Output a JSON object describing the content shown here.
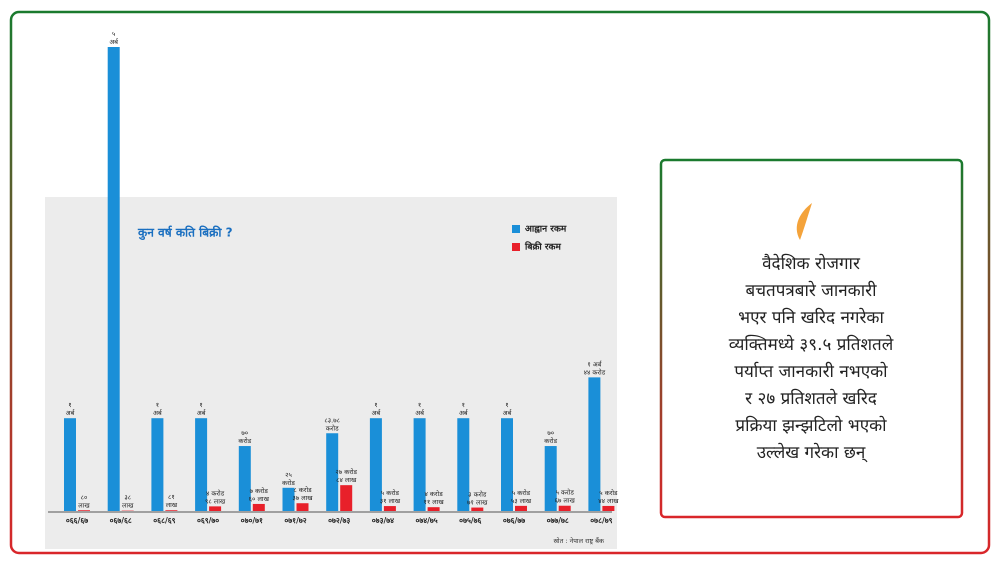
{
  "chart_data": {
    "type": "bar",
    "title": "कुन वर्ष कति बिक्री ?",
    "categories": [
      "०६६/६७",
      "०६७/६८",
      "०६८/६९",
      "०६९/७०",
      "०७०/७१",
      "०७१/७२",
      "०७२/७३",
      "०७३/७४",
      "०७४/७५",
      "०७५/७६",
      "०७६/७७",
      "०७७/७८",
      "०७८/७९"
    ],
    "series": [
      {
        "name": "आह्वान रकम",
        "color": "#1a8fd8",
        "values": [
          100,
          500,
          100,
          100,
          70,
          25,
          83.78,
          100,
          100,
          100,
          100,
          70,
          144
        ],
        "value_labels": [
          "१ अर्ब",
          "५ अर्ब",
          "१ अर्ब",
          "१ अर्ब",
          "७० करोड",
          "२५ करोड",
          "८३.७८ करोड",
          "१ अर्ब",
          "१ अर्ब",
          "१ अर्ब",
          "१ अर्ब",
          "७० करोड",
          "१ अर्ब ४४ करोड"
        ]
      },
      {
        "name": "बिक्री रकम",
        "color": "#e8202a",
        "values": [
          0.8,
          0.38,
          0.81,
          4.98,
          7.6,
          8.37,
          27.84,
          5.31,
          4.11,
          3.71,
          5.53,
          5.67,
          5.44
        ],
        "value_labels": [
          "८० लाख",
          "३८ लाख",
          "८१ लाख",
          "४ करोड ९८ लाख",
          "७ करोड ६० लाख",
          "८ करोड ३७ लाख",
          "२७ करोड ८४ लाख",
          "५ करोड ३१ लाख",
          "४ करोड ११ लाख",
          "३ करोड ७१ लाख",
          "५ करोड ५३ लाख",
          "५ करोड ६७ लाख",
          "५ करोड ४४ लाख"
        ]
      }
    ],
    "ylim": [
      0,
      500
    ],
    "source": "स्रोत : नेपाल राष्ट्र बैंक"
  },
  "quote": {
    "lines": [
      "वैदेशिक रोजगार",
      "बचतपत्रबारे जानकारी",
      "भएर पनि खरिद नगरेका",
      "व्यक्तिमध्ये ३९.५ प्रतिशतले",
      "पर्याप्त जानकारी नभएको",
      "र २७ प्रतिशतले खरिद",
      "प्रक्रिया झन्झटिलो भएको",
      "उल्लेख गरेका छन्"
    ]
  }
}
